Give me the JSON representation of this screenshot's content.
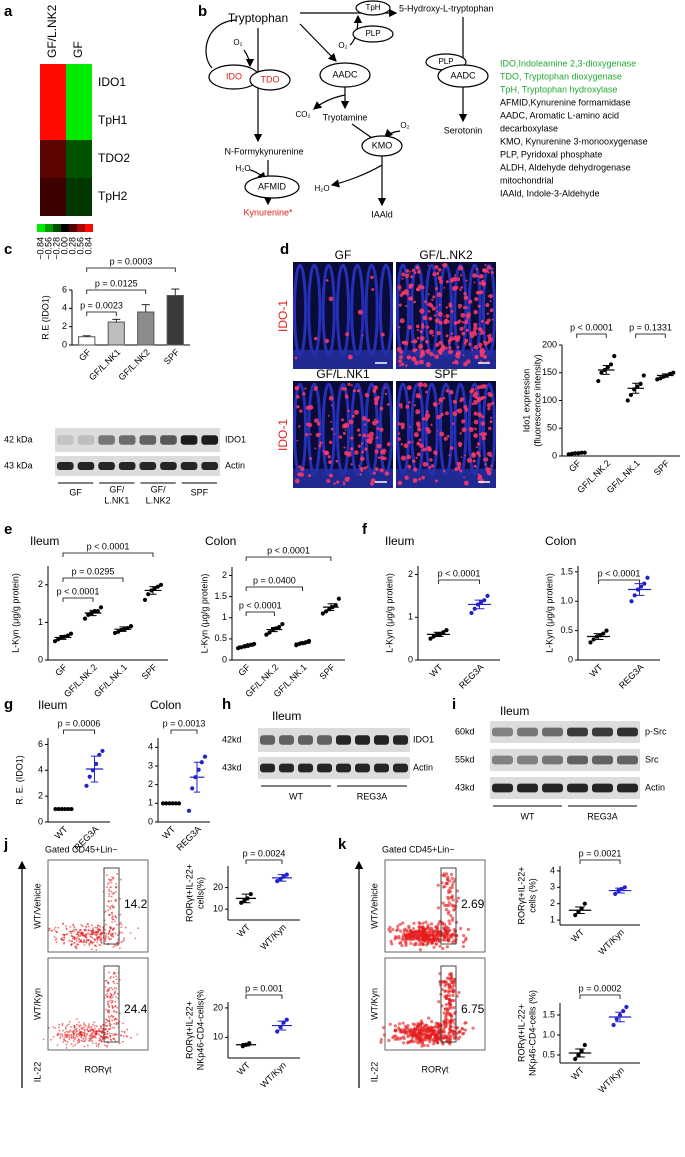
{
  "a": {
    "label": "a",
    "columns": [
      "GF/L.NK2",
      "GF"
    ],
    "rows": [
      "IDO1",
      "TpH1",
      "TDO2",
      "TpH2"
    ],
    "values": [
      [
        0.84,
        -0.84
      ],
      [
        0.84,
        -0.84
      ],
      [
        0.3,
        -0.3
      ],
      [
        0.2,
        -0.2
      ]
    ],
    "scale_ticks": [
      {
        "value": -0.84,
        "label": "−0.84"
      },
      {
        "value": -0.56,
        "label": "−0.56"
      },
      {
        "value": -0.28,
        "label": "−0.28"
      },
      {
        "value": 0,
        "label": "0.00"
      },
      0.28,
      0.56,
      0.84
    ]
  },
  "b": {
    "label": "b",
    "tryptophan": "Tryptophan",
    "tph": "TpH",
    "hydroxy": "5-Hydroxy-L-tryptophan",
    "plp": [
      "PLP",
      "PLP"
    ],
    "o2": [
      "O₂",
      "O₂",
      "O₂"
    ],
    "ido": "IDO",
    "tdo": "TDO",
    "aadc": [
      "AADC",
      "AADC"
    ],
    "kmo": "KMO",
    "afmid": "AFMID",
    "tryotamine": "Tryotamine",
    "co2": "CO₂",
    "formylkynurenine": "N-Formykynurenine",
    "h2o": [
      "H₂O",
      "H₂O"
    ],
    "kynurenine": "Kynurenine*",
    "iaald": "IAAld",
    "serotonin": "Serotonin",
    "legend": [
      "IDO,Indoleamine 2,3-dioxygenase",
      "TDO, Tryptophan dioxygenase",
      "TpH, Tryptophan hydroxylase",
      "AFMID,Kynurenine formamidase",
      "AADC, Aromatic L-amino acid",
      "decarboxylase",
      "KMO, Kynurenine 3-monooxygenase",
      "PLP, Pyridoxal phosphate",
      "ALDH, Aldehyde dehydrogenase",
      "mitochondrial",
      "IAAld, Indole-3-Aldehyde"
    ]
  },
  "c": {
    "label": "c",
    "chart": {
      "type": "bar",
      "ylabel": "R.E (IDO1)",
      "categories": [
        "GF",
        "GF/L.NK1",
        "GF/L.NK2",
        "SPF"
      ],
      "values": [
        0.9,
        2.5,
        3.6,
        5.4
      ],
      "errors": [
        0.1,
        0.3,
        0.8,
        0.7
      ],
      "colors": [
        "#ffffff",
        "#bdbdbd",
        "#8c8c8c",
        "#3a3a3a"
      ],
      "ylim": [
        0,
        6
      ],
      "yticks": [
        0,
        2,
        4,
        6
      ],
      "pvalues": [
        "p = 0.0023",
        "p = 0.0125",
        "p = 0.0003"
      ]
    },
    "blot": {
      "markers": [
        "42 kDa",
        "43 kDa"
      ],
      "proteins": [
        "IDO1",
        "Actin"
      ],
      "groups": [
        [
          "GF"
        ],
        [
          "GF/",
          "L.NK1"
        ],
        [
          "GF/",
          "L.NK2"
        ],
        [
          "SPF"
        ]
      ]
    }
  },
  "d": {
    "label": "d",
    "image_titles": [
      "GF",
      "GF/L.NK2",
      "GF/L.NK1",
      "SPF"
    ],
    "stain": [
      "IDO-1",
      "IDO-1"
    ],
    "chart": {
      "type": "dot",
      "ylabel": [
        "Ido1 expression",
        "(fluorescence intensity)"
      ],
      "categories": [
        "GF",
        "GF/L.NK.2",
        "GF/L.NK.1",
        "SPF"
      ],
      "colors": [
        "#000000",
        "#000000",
        "#000000",
        "#000000"
      ],
      "groups": [
        {
          "points": [
            3,
            4,
            5,
            5,
            6,
            6
          ],
          "mean": 5,
          "err": 1
        },
        {
          "points": [
            135,
            150,
            155,
            160,
            165,
            180
          ],
          "mean": 155,
          "err": 8
        },
        {
          "points": [
            100,
            110,
            120,
            125,
            130,
            145
          ],
          "mean": 122,
          "err": 9
        },
        {
          "points": [
            138,
            140,
            143,
            145,
            148,
            150
          ],
          "mean": 145,
          "err": 3
        }
      ],
      "ylim": [
        0,
        200
      ],
      "yticks": [
        0,
        50,
        100,
        150,
        200
      ],
      "pvalues": [
        "p < 0.0001",
        "p = 0.1331"
      ]
    }
  },
  "e": {
    "label": "e",
    "charts": [
      {
        "type": "dot",
        "title": "Ileum",
        "ylabel": "L-Kyn (μg/g protein)",
        "categories": [
          "GF",
          "GF/L.NK.2",
          "GF/L.NK.1",
          "SPF"
        ],
        "colors": [
          "#000000",
          "#000000",
          "#000000",
          "#000000"
        ],
        "groups": [
          {
            "points": [
              0.5,
              0.55,
              0.6,
              0.62,
              0.65,
              0.7
            ],
            "mean": 0.6,
            "err": 0.05
          },
          {
            "points": [
              1.1,
              1.2,
              1.25,
              1.3,
              1.3,
              1.4
            ],
            "mean": 1.25,
            "err": 0.07
          },
          {
            "points": [
              0.72,
              0.75,
              0.8,
              0.82,
              0.85,
              0.9
            ],
            "mean": 0.82,
            "err": 0.06
          },
          {
            "points": [
              1.6,
              1.75,
              1.85,
              1.9,
              1.95,
              2.0
            ],
            "mean": 1.85,
            "err": 0.1
          }
        ],
        "ylim": [
          0,
          2.5
        ],
        "yticks": [
          0,
          1,
          2
        ],
        "pvalues": [
          "p < 0.0001",
          "p = 0.0295",
          "p < 0.0001"
        ]
      },
      {
        "type": "dot",
        "title": "Colon",
        "ylabel": "L-Kyn (μg/g protein)",
        "categories": [
          "GF",
          "GF/L.NK.2",
          "GF/L.NK.1",
          "SPF"
        ],
        "colors": [
          "#000000",
          "#000000",
          "#000000",
          "#000000"
        ],
        "groups": [
          {
            "points": [
              0.28,
              0.3,
              0.32,
              0.35,
              0.36,
              0.38
            ],
            "mean": 0.33,
            "err": 0.03
          },
          {
            "points": [
              0.6,
              0.65,
              0.72,
              0.75,
              0.78,
              0.85
            ],
            "mean": 0.72,
            "err": 0.05
          },
          {
            "points": [
              0.35,
              0.38,
              0.4,
              0.42,
              0.45
            ],
            "mean": 0.4,
            "err": 0.03
          },
          {
            "points": [
              1.1,
              1.15,
              1.2,
              1.25,
              1.3,
              1.45
            ],
            "mean": 1.25,
            "err": 0.08
          }
        ],
        "ylim": [
          0,
          2.2
        ],
        "yticks": [
          0,
          0.5,
          1,
          1.5,
          2
        ],
        "pvalues": [
          "p < 0.0001",
          "p = 0.0400",
          "p < 0.0001"
        ]
      }
    ]
  },
  "f": {
    "label": "f",
    "charts": [
      {
        "type": "dot",
        "title": "Ileum",
        "ylabel": "L-Kyn (μg/g protein)",
        "categories": [
          "WT",
          "REG3A"
        ],
        "colors": [
          "#000000",
          "#2222cc"
        ],
        "groups": [
          {
            "points": [
              0.5,
              0.55,
              0.6,
              0.6,
              0.65,
              0.7
            ],
            "mean": 0.6,
            "err": 0.05
          },
          {
            "points": [
              1.1,
              1.2,
              1.3,
              1.35,
              1.4,
              1.5
            ],
            "mean": 1.3,
            "err": 0.1
          }
        ],
        "ylim": [
          0,
          2.2
        ],
        "yticks": [
          0,
          1,
          2
        ],
        "pvalues": [
          "p < 0.0001"
        ]
      },
      {
        "type": "dot",
        "title": "Colon",
        "ylabel": "L-Kyn (μg/g protein)",
        "categories": [
          "WT",
          "REG3A"
        ],
        "colors": [
          "#000000",
          "#2222cc"
        ],
        "groups": [
          {
            "points": [
              0.3,
              0.35,
              0.4,
              0.42,
              0.45,
              0.5
            ],
            "mean": 0.4,
            "err": 0.05
          },
          {
            "points": [
              1.0,
              1.1,
              1.2,
              1.25,
              1.3,
              1.4
            ],
            "mean": 1.2,
            "err": 0.1
          }
        ],
        "ylim": [
          0,
          1.6
        ],
        "yticks": [
          0,
          0.5,
          {
            "value": 1,
            "label": "1.0"
          },
          1.5
        ],
        "pvalues": [
          "p < 0.0001"
        ]
      }
    ]
  },
  "g": {
    "label": "g",
    "charts": [
      {
        "type": "dot",
        "title": "Ileum",
        "ylabel": "R. E. (IDO1)",
        "categories": [
          "WT",
          "REG3A"
        ],
        "colors": [
          "#000000",
          "#2222cc"
        ],
        "groups": [
          {
            "points": [
              1,
              1,
              1,
              1,
              1,
              1
            ],
            "mean": 1,
            "err": 0
          },
          {
            "points": [
              2.8,
              3.5,
              4,
              4.5,
              5.2,
              5.5
            ],
            "mean": 4.1,
            "err": 1
          }
        ],
        "ylim": [
          0,
          6.5
        ],
        "yticks": [
          0,
          2,
          4,
          6
        ],
        "pvalues": [
          "p = 0.0006"
        ]
      },
      {
        "type": "dot",
        "title": "Colon",
        "categories": [
          "WT",
          "REG3A"
        ],
        "colors": [
          "#000000",
          "#2222cc"
        ],
        "groups": [
          {
            "points": [
              1,
              1,
              1,
              1,
              1,
              1
            ],
            "mean": 1,
            "err": 0
          },
          {
            "points": [
              0.6,
              1.8,
              2.4,
              2.8,
              3.2,
              3.5
            ],
            "mean": 2.4,
            "err": 0.8
          }
        ],
        "ylim": [
          0,
          4.5
        ],
        "yticks": [
          0,
          1,
          2,
          3,
          4
        ],
        "pvalues": [
          "p = 0.0013"
        ]
      }
    ]
  },
  "h": {
    "label": "h",
    "title": "Ileum",
    "markers": [
      "42kd",
      "43kd"
    ],
    "proteins": [
      "IDO1",
      "Actin"
    ],
    "groups": [
      "WT",
      "REG3A"
    ]
  },
  "i": {
    "label": "i",
    "title": "Ileum",
    "markers": [
      "60kd",
      "55kd",
      "43kd"
    ],
    "proteins": [
      "p-Src",
      "Src",
      "Actin"
    ],
    "groups": [
      "WT",
      "REG3A"
    ]
  },
  "j": {
    "label": "j",
    "gate": "Gated CD45+Lin−",
    "conditions": [
      "WT/Vehicle",
      "WT/Kyn"
    ],
    "gate_percent": [
      14.2,
      24.4
    ],
    "y_axis": "IL-22",
    "x_axis": "RORγt",
    "charts": [
      {
        "type": "dot",
        "ylabel": [
          "RORγt+IL-22+",
          "cells(%)"
        ],
        "categories": [
          "WT",
          "WT/Kyn"
        ],
        "colors": [
          "#000000",
          "#2222cc"
        ],
        "groups": [
          {
            "points": [
              13,
              14,
              15,
              17
            ],
            "mean": 15,
            "err": 2
          },
          {
            "points": [
              23,
              24,
              25,
              26
            ],
            "mean": 24.5,
            "err": 1.5
          }
        ],
        "ylim": [
          5,
          30
        ],
        "yticks": [
          10,
          20
        ],
        "pvalues": [
          "p = 0.0024"
        ]
      },
      {
        "type": "dot",
        "ylabel": [
          "RORγt+IL-22+",
          "NKp46-CD4-cells(%"
        ],
        "categories": [
          "WT",
          "WT/Kyn"
        ],
        "colors": [
          "#000000",
          "#2222cc"
        ],
        "groups": [
          {
            "points": [
              7,
              7.5,
              8
            ],
            "mean": 7.5,
            "err": 0.4
          },
          {
            "points": [
              12,
              13.5,
              15,
              16
            ],
            "mean": 14,
            "err": 1.5
          }
        ],
        "ylim": [
          3,
          22
        ],
        "yticks": [
          10,
          20
        ],
        "pvalues": [
          "p = 0.001"
        ]
      }
    ]
  },
  "k": {
    "label": "k",
    "gate": "Gated CD45+Lin−",
    "conditions": [
      "WT/Vehicle",
      "WT/Kyn"
    ],
    "gate_percent": [
      2.69,
      6.75
    ],
    "y_axis": "IL-22",
    "x_axis": "RORγt",
    "charts": [
      {
        "type": "dot",
        "ylabel": [
          "RORγt+IL-22+",
          "cells (%)"
        ],
        "categories": [
          "WT",
          "WT/Kyn"
        ],
        "colors": [
          "#000000",
          "#2222cc"
        ],
        "groups": [
          {
            "points": [
              1.3,
              1.5,
              1.7,
              2.0
            ],
            "mean": 1.6,
            "err": 0.2
          },
          {
            "points": [
              2.6,
              2.8,
              2.9,
              3.0
            ],
            "mean": 2.8,
            "err": 0.15
          }
        ],
        "ylim": [
          0.7,
          4.3
        ],
        "yticks": [
          1,
          2,
          3,
          4
        ],
        "pvalues": [
          "p = 0.0021"
        ]
      },
      {
        "type": "dot",
        "ylabel": [
          "RORγt+IL-22+",
          "NKp46-CD4-cells (%)"
        ],
        "categories": [
          "WT",
          "WT/Kyn"
        ],
        "colors": [
          "#000000",
          "#2222cc"
        ],
        "groups": [
          {
            "points": [
              0.4,
              0.5,
              0.6,
              0.75
            ],
            "mean": 0.55,
            "err": 0.1
          },
          {
            "points": [
              1.25,
              1.4,
              1.5,
              1.6,
              1.7
            ],
            "mean": 1.45,
            "err": 0.12
          }
        ],
        "ylim": [
          0.3,
          1.8
        ],
        "yticks": [
          0.5,
          {
            "value": 1,
            "label": "1.0"
          },
          1.5
        ],
        "pvalues": [
          "p = 0.0002"
        ]
      }
    ]
  }
}
